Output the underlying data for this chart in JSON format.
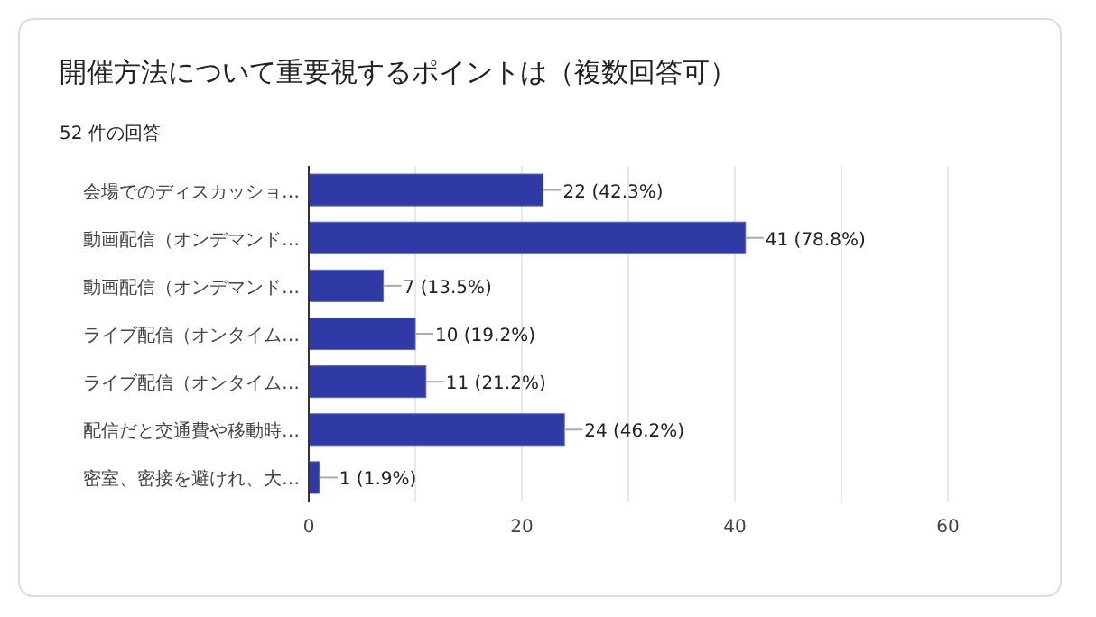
{
  "chart_data": {
    "type": "bar",
    "orientation": "horizontal",
    "title": "開催方法について重要視するポイントは（複数回答可）",
    "subtitle": "52 件の回答",
    "categories": [
      "会場でのディスカッショ…",
      "動画配信（オンデマンド…",
      "動画配信（オンデマンド…",
      "ライブ配信（オンタイム…",
      "ライブ配信（オンタイム…",
      "配信だと交通費や移動時…",
      "密室、密接を避けれ、大…"
    ],
    "values": [
      22,
      41,
      7,
      10,
      11,
      24,
      1
    ],
    "color": "#2f3aa6",
    "value_labels": [
      "22 (42.3%)",
      "41 (78.8%)",
      "7 (13.5%)",
      "10 (19.2%)",
      "11 (21.2%)",
      "24 (46.2%)",
      "1 (1.9%)"
    ],
    "xlim": [
      0,
      60
    ],
    "xticks": [
      0,
      {
        "value": 10,
        "label": null
      },
      20,
      {
        "value": 30,
        "label": null
      },
      40,
      {
        "value": 50,
        "label": null
      },
      60
    ],
    "grid": "x"
  }
}
